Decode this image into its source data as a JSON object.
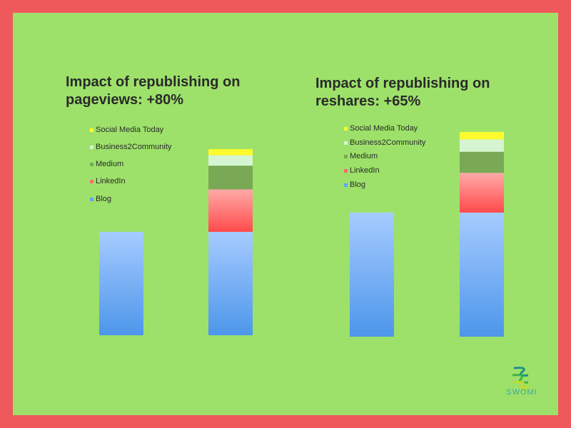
{
  "colors": {
    "blog": "#62a6f2",
    "linkedin": "#ff6b6b",
    "medium": "#79a955",
    "business2community": "#d5f5d2",
    "social_media_today": "#fdfb2e"
  },
  "legend": [
    "Social Media Today",
    "Business2Community",
    "Medium",
    "LinkedIn",
    "Blog"
  ],
  "logo": {
    "text": "SWOMI"
  },
  "chart_data": [
    {
      "type": "bar",
      "stacked": true,
      "title": "Impact of republishing on\npageviews: +80%",
      "categories": [
        "",
        ""
      ],
      "series": [
        {
          "name": "Blog",
          "values": [
            100,
            100
          ]
        },
        {
          "name": "LinkedIn",
          "values": [
            0,
            41
          ]
        },
        {
          "name": "Medium",
          "values": [
            0,
            23
          ]
        },
        {
          "name": "Business2Community",
          "values": [
            0,
            10
          ]
        },
        {
          "name": "Social Media Today",
          "values": [
            0,
            6
          ]
        }
      ],
      "ylim": [
        0,
        180
      ],
      "grid": false,
      "legend_position": "top-left"
    },
    {
      "type": "bar",
      "stacked": true,
      "title": "Impact of republishing on\nreshares: +65%",
      "categories": [
        "",
        ""
      ],
      "series": [
        {
          "name": "Blog",
          "values": [
            100,
            100
          ]
        },
        {
          "name": "LinkedIn",
          "values": [
            0,
            32
          ]
        },
        {
          "name": "Medium",
          "values": [
            0,
            17
          ]
        },
        {
          "name": "Business2Community",
          "values": [
            0,
            10
          ]
        },
        {
          "name": "Social Media Today",
          "values": [
            0,
            6
          ]
        }
      ],
      "ylim": [
        0,
        165
      ],
      "grid": false,
      "legend_position": "top-left"
    }
  ]
}
